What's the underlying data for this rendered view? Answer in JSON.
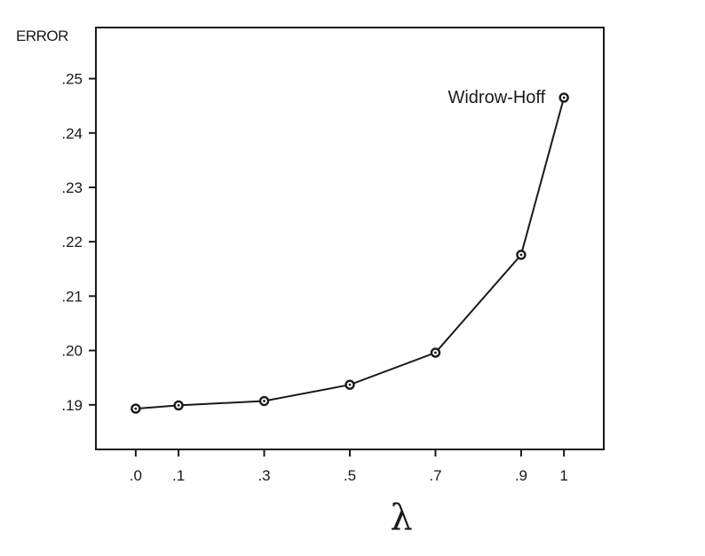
{
  "chart_data": {
    "type": "line",
    "ylabel": "ERROR",
    "xlabel": "λ",
    "x_ticks": [
      ".0",
      ".1",
      ".3",
      ".5",
      ".7",
      ".9",
      "1"
    ],
    "y_ticks": [
      ".25",
      ".24",
      ".23",
      ".22",
      ".21",
      ".20",
      ".19"
    ],
    "x_tick_values": [
      0.0,
      0.1,
      0.3,
      0.5,
      0.7,
      0.9,
      1.0
    ],
    "y_tick_values": [
      0.25,
      0.24,
      0.23,
      0.22,
      0.21,
      0.2,
      0.19
    ],
    "xlim": [
      -0.093,
      1.093
    ],
    "ylim": [
      0.1818,
      0.2594
    ],
    "grid": false,
    "series": [
      {
        "x": [
          0.0,
          0.1,
          0.3,
          0.5,
          0.7,
          0.9,
          1.0
        ],
        "y": [
          0.1893,
          0.1899,
          0.1907,
          0.1937,
          0.1996,
          0.2176,
          0.2465
        ]
      }
    ],
    "annotation": {
      "text": "Widrow-Hoff",
      "x": 1.0,
      "y": 0.2465
    }
  }
}
